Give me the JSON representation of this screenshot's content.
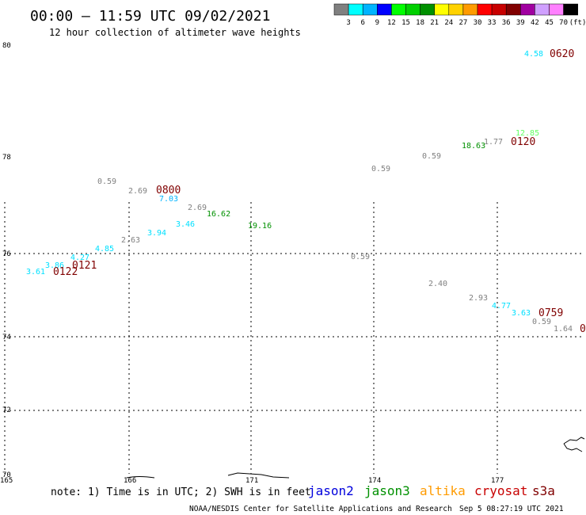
{
  "header": {
    "title": "00:00 – 11:59 UTC 09/02/2021",
    "subtitle": "12 hour collection of altimeter wave heights"
  },
  "legend": {
    "colors": [
      "#808080",
      "#00ffff",
      "#00b4ff",
      "#0000ff",
      "#00ff00",
      "#00d000",
      "#009000",
      "#ffff00",
      "#ffd200",
      "#ff9b00",
      "#ff0000",
      "#c80000",
      "#800000",
      "#a000a0",
      "#d0a0ff",
      "#ff80ff",
      "#000000"
    ],
    "labels": [
      "3",
      "6",
      "9",
      "12",
      "15",
      "18",
      "21",
      "24",
      "27",
      "30",
      "33",
      "36",
      "39",
      "42",
      "45",
      "70"
    ],
    "unit": "(ft)"
  },
  "axes": {
    "y_ticks": [
      "80",
      "78",
      "76",
      "74",
      "72",
      "70"
    ],
    "x_ticks": [
      "165",
      "166",
      "171",
      "174",
      "177"
    ]
  },
  "annotations": [
    {
      "text": "4.58",
      "color": "#00e0ff"
    },
    {
      "text": "0620",
      "color": "#800000"
    },
    {
      "text": "12.85",
      "color": "#60ff60"
    },
    {
      "text": "18.63",
      "color": "#009000"
    },
    {
      "text": "1.77",
      "color": "#808080"
    },
    {
      "text": "0120",
      "color": "#800000"
    },
    {
      "text": "0.59",
      "color": "#808080"
    },
    {
      "text": "0.59",
      "color": "#808080"
    },
    {
      "text": "0.59",
      "color": "#808080"
    },
    {
      "text": "2.69",
      "color": "#808080"
    },
    {
      "text": "0800",
      "color": "#800000"
    },
    {
      "text": "7.03",
      "color": "#00b4ff"
    },
    {
      "text": "2.69",
      "color": "#808080"
    },
    {
      "text": "16.62",
      "color": "#009000"
    },
    {
      "text": "3.46",
      "color": "#00e0ff"
    },
    {
      "text": "19.16",
      "color": "#009000"
    },
    {
      "text": "3.94",
      "color": "#00e0ff"
    },
    {
      "text": "2.63",
      "color": "#808080"
    },
    {
      "text": "4.85",
      "color": "#00e0ff"
    },
    {
      "text": "4.27",
      "color": "#00e0ff"
    },
    {
      "text": "0121",
      "color": "#800000"
    },
    {
      "text": "3.86",
      "color": "#00e0ff"
    },
    {
      "text": "3.61",
      "color": "#00e0ff"
    },
    {
      "text": "0122",
      "color": "#800000"
    },
    {
      "text": "0.59",
      "color": "#808080"
    },
    {
      "text": "2.40",
      "color": "#808080"
    },
    {
      "text": "2.93",
      "color": "#808080"
    },
    {
      "text": "4.77",
      "color": "#00e0ff"
    },
    {
      "text": "3.63",
      "color": "#00e0ff"
    },
    {
      "text": "0759",
      "color": "#800000"
    },
    {
      "text": "0.59",
      "color": "#808080"
    },
    {
      "text": "1.64",
      "color": "#808080"
    },
    {
      "text": "0",
      "color": "#800000"
    }
  ],
  "footer": {
    "note": "note: 1) Time is in UTC; 2) SWH is in feet",
    "satellites": [
      {
        "name": "jason2",
        "color": "#0000dd"
      },
      {
        "name": "jason3",
        "color": "#009000"
      },
      {
        "name": "altika",
        "color": "#ff9b00"
      },
      {
        "name": "cryosat",
        "color": "#c80000"
      },
      {
        "name": "s3a",
        "color": "#800000"
      }
    ],
    "credit": "NOAA/NESDIS Center for Satellite Applications and Research",
    "timestamp": "Sep  5 08:27:19 UTC 2021"
  }
}
